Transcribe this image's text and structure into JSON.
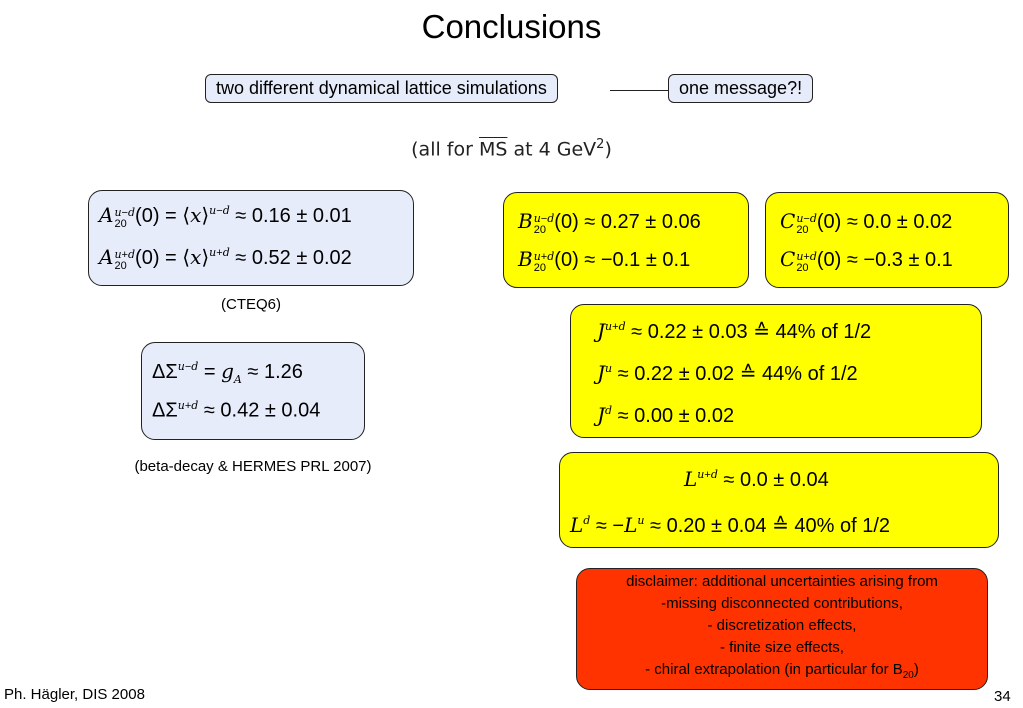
{
  "slide": {
    "title": "Conclusions",
    "pill_left": "two different dynamical lattice simulations",
    "pill_right": "one message?!",
    "note_prefix": "(all for ",
    "note_scheme": "MS",
    "note_suffix": " at 4 GeV",
    "note_power": "2",
    "note_close": ")"
  },
  "equations": {
    "a20_1": "A20u−d(0) = ⟨x⟩u−d ≈ 0.16 ± 0.01",
    "a20_2": "A20u+d(0) = ⟨x⟩u+d ≈ 0.52 ± 0.02",
    "cteq": "(CTEQ6)",
    "sigma_1": "ΔΣu−d = gA ≈ 1.26",
    "sigma_2": "ΔΣu+d ≈ 0.42 ± 0.04",
    "sigma_caption": "(beta-decay & HERMES PRL 2007)",
    "b20_1": "B20u−d(0) ≈ 0.27 ± 0.06",
    "b20_2": "B20u+d(0) ≈ −0.1 ± 0.1",
    "c20_1": "C20u−d(0) ≈ 0.0 ± 0.02",
    "c20_2": "C20u+d(0) ≈ −0.3 ± 0.1",
    "j_1": "Ju+d ≈ 0.22 ± 0.03 ≙ 44% of 1/2",
    "j_2": "Ju ≈ 0.22 ± 0.02 ≙ 44% of 1/2",
    "j_3": "Jd ≈ 0.00 ± 0.02",
    "l_1": "Lu+d ≈ 0.0 ± 0.04",
    "l_2": "Ld ≈ −Lu ≈ 0.20 ± 0.04 ≙ 40% of 1/2"
  },
  "disclaimer": {
    "line1": "disclaimer: additional uncertainties arising from",
    "line2": "-missing disconnected contributions,",
    "line3": "- discretization effects,",
    "line4": "- finite size effects,",
    "line5_prefix": "- chiral extrapolation (in particular for B",
    "line5_sub": "20",
    "line5_suffix": ")"
  },
  "footer": {
    "author": "Ph. Hägler, DIS 2008",
    "page": "34"
  },
  "colors": {
    "blue_box": "#e6ecfa",
    "yellow_box": "#ffff00",
    "red_box": "#ff3300"
  }
}
